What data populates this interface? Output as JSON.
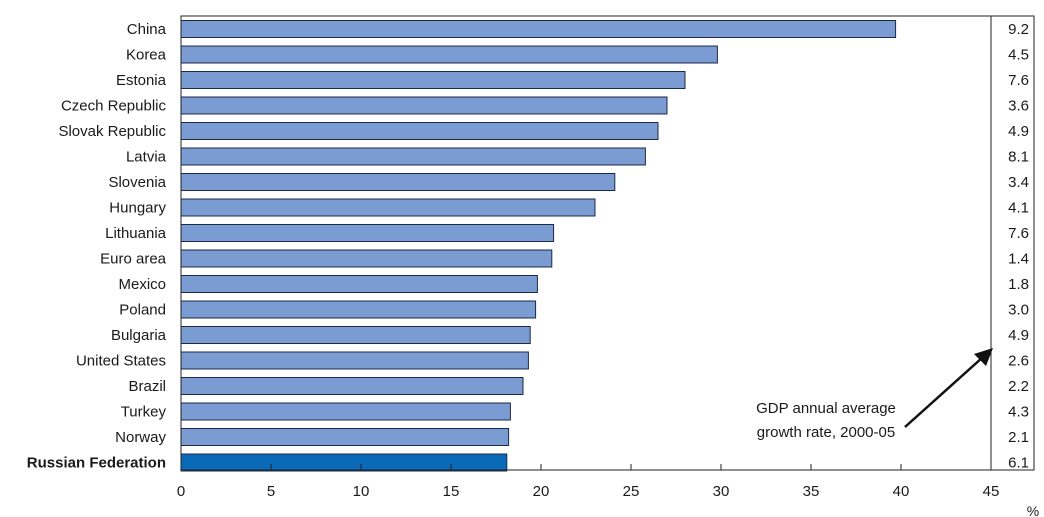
{
  "chart_data": {
    "type": "bar",
    "orientation": "horizontal",
    "categories": [
      "China",
      "Korea",
      "Estonia",
      "Czech Republic",
      "Slovak Republic",
      "Latvia",
      "Slovenia",
      "Hungary",
      "Lithuania",
      "Euro area",
      "Mexico",
      "Poland",
      "Bulgaria",
      "United States",
      "Brazil",
      "Turkey",
      "Norway",
      "Russian Federation"
    ],
    "values": [
      39.7,
      29.8,
      28.0,
      27.0,
      26.5,
      25.8,
      24.1,
      23.0,
      20.7,
      20.6,
      19.8,
      19.7,
      19.4,
      19.3,
      19.0,
      18.3,
      18.2,
      18.1
    ],
    "growth_labels": [
      "9.2",
      "4.5",
      "7.6",
      "3.6",
      "4.9",
      "8.1",
      "3.4",
      "4.1",
      "7.6",
      "1.4",
      "1.8",
      "3.0",
      "4.9",
      "2.6",
      "2.2",
      "4.3",
      "2.1",
      "6.1"
    ],
    "highlight_category": "Russian Federation",
    "xlim": [
      0,
      45
    ],
    "xticks": [
      "0",
      "5",
      "10",
      "15",
      "20",
      "25",
      "30",
      "35",
      "40",
      "45"
    ],
    "xunit": "%",
    "annotation": {
      "line1": "GDP annual average",
      "line2": "growth rate, 2000-05"
    },
    "grid": false,
    "colors": {
      "bar": "#7b9bd3",
      "bar_highlight": "#0a6ab8",
      "bar_stroke": "#1c2a48",
      "axis": "#222222"
    }
  }
}
